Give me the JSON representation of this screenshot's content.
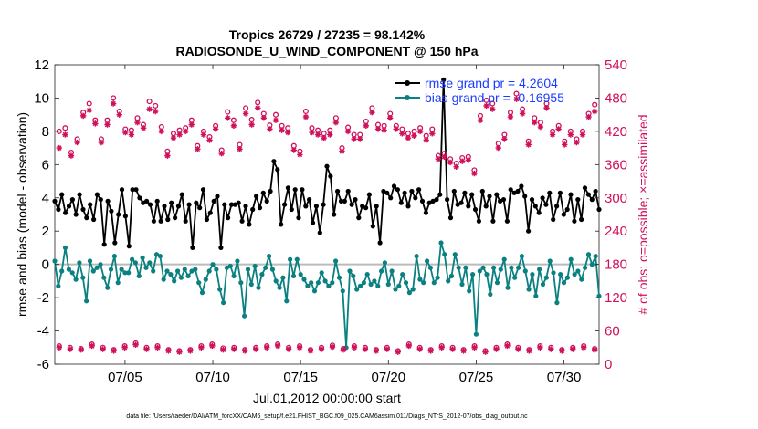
{
  "chart_data": {
    "type": "line",
    "title": "Tropics 26729 / 27235 = 98.142%",
    "subtitle": "RADIOSONDE_U_WIND_COMPONENT @ 150 hPa",
    "xlabel": "Jul.01,2012 00:00:00 start",
    "ylabel": "rmse and bias (model - observation)",
    "ylabel_right": "# of obs: o=possible; ×=assimilated",
    "ylim": [
      -6,
      12
    ],
    "ylim_right": [
      0,
      540
    ],
    "xlim": [
      1,
      32
    ],
    "x_ticks": [
      5,
      10,
      15,
      20,
      25,
      30
    ],
    "x_tick_labels": [
      "07/05",
      "07/10",
      "07/15",
      "07/20",
      "07/25",
      "07/30"
    ],
    "y_ticks": [
      -6,
      -4,
      -2,
      0,
      2,
      4,
      6,
      8,
      10,
      12
    ],
    "y_ticks_right": [
      0,
      60,
      120,
      180,
      240,
      300,
      360,
      420,
      480,
      540
    ],
    "footer": "data file: /Users/raeder/DAI/ATM_forcXX/CAM6_setup/f.e21.FHIST_BGC.f09_025.CAM6assim.011/Diags_NTrS_2012-07/obs_diag_output.nc",
    "legend_position": "top-right",
    "colors": {
      "rmse": "#000000",
      "bias": "#0a8080",
      "counts": "#d0105a",
      "zero_line": "#bbbbbb",
      "legend_text": "#1a3cff"
    },
    "series": [
      {
        "name": "rmse",
        "legend": "rmse grand pr = 4.2604",
        "values": [
          3.8,
          3.3,
          4.2,
          3.1,
          3.5,
          3.9,
          3.0,
          4.2,
          3.3,
          2.8,
          3.6,
          2.7,
          4.2,
          3.9,
          1.2,
          3.8,
          3.2,
          1.3,
          3.0,
          4.5,
          2.9,
          1.1,
          4.5,
          4.5,
          4.0,
          3.7,
          3.8,
          3.6,
          2.6,
          3.8,
          2.6,
          3.5,
          2.7,
          3.7,
          2.8,
          3.5,
          4.2,
          2.6,
          3.6,
          1.0,
          3.7,
          3.4,
          4.5,
          2.7,
          3.1,
          3.8,
          4.1,
          1.0,
          3.6,
          2.8,
          3.6,
          3.6,
          3.7,
          2.6,
          3.5,
          2.4,
          3.3,
          4.1,
          3.4,
          4.3,
          3.8,
          4.4,
          6.2,
          5.7,
          2.4,
          3.6,
          4.6,
          3.3,
          4.5,
          2.8,
          4.5,
          3.5,
          3.9,
          2.5,
          3.5,
          1.9,
          3.6,
          5.9,
          5.3,
          3.0,
          4.4,
          3.8,
          3.8,
          4.4,
          3.6,
          3.9,
          2.8,
          3.5,
          3.4,
          4.2,
          2.3,
          3.5,
          1.3,
          4.4,
          4.3,
          4.0,
          4.7,
          4.5,
          3.7,
          4.3,
          3.5,
          4.4,
          4.0,
          4.5,
          3.8,
          3.1,
          3.7,
          3.8,
          3.9,
          4.2,
          11.1,
          3.9,
          2.8,
          4.4,
          3.6,
          3.7,
          4.3,
          3.5,
          4.2,
          3.3,
          2.6,
          4.4,
          3.5,
          4.1,
          2.6,
          4.2,
          3.8,
          3.9,
          2.6,
          4.5,
          4.3,
          4.4,
          4.7,
          4.1,
          2.0,
          3.9,
          3.5,
          3.1,
          4.0,
          3.6,
          4.3,
          2.7,
          3.5,
          4.3,
          3.0,
          3.3,
          4.2,
          2.6,
          3.9,
          2.7,
          4.6,
          4.2,
          3.9,
          4.4,
          3.3
        ]
      },
      {
        "name": "bias",
        "legend": "bias grand pr = -0.16955",
        "values": [
          0.2,
          -1.3,
          -0.4,
          1.0,
          -0.3,
          -0.5,
          -0.9,
          0.1,
          -0.8,
          -2.2,
          0.2,
          -0.4,
          -0.2,
          0.0,
          -0.8,
          -1.4,
          -0.3,
          0.5,
          -1.1,
          -0.3,
          -0.5,
          -0.5,
          0.3,
          0.1,
          -0.7,
          0.4,
          -0.2,
          0.1,
          -0.4,
          0.6,
          0.5,
          -0.9,
          -0.4,
          -0.6,
          -1.0,
          -0.4,
          -0.8,
          -0.3,
          -0.7,
          -0.4,
          -0.3,
          -1.1,
          -1.7,
          -0.9,
          -0.4,
          0.0,
          -0.3,
          -1.5,
          -2.3,
          -0.2,
          -0.1,
          -0.7,
          0.2,
          -1.1,
          -3.1,
          -0.3,
          -1.2,
          -0.1,
          -1.4,
          -0.6,
          -0.2,
          0.5,
          -0.3,
          -1.0,
          -1.4,
          -0.8,
          -2.2,
          0.3,
          -0.7,
          0.3,
          -0.6,
          -0.9,
          -1.3,
          -1.1,
          -1.6,
          -1.1,
          -0.5,
          -1.0,
          -1.3,
          -1.1,
          0.2,
          -0.8,
          -1.6,
          -5.0,
          -0.4,
          -0.7,
          -1.5,
          -1.3,
          -1.1,
          -0.6,
          -1.2,
          -1.0,
          -1.3,
          -0.4,
          0.1,
          -1.2,
          -0.4,
          -1.5,
          -1.3,
          -0.6,
          -1.1,
          -1.7,
          -1.5,
          0.5,
          -0.9,
          -1.1,
          0.2,
          -0.2,
          -1.1,
          -0.8,
          1.3,
          0.6,
          -1.0,
          -0.7,
          0.6,
          -0.2,
          -1.2,
          -0.2,
          -1.6,
          -0.6,
          -4.2,
          -0.4,
          -0.2,
          -0.6,
          -1.8,
          -0.2,
          -1.1,
          -0.3,
          0.3,
          -1.4,
          -0.2,
          -0.8,
          -0.2,
          0.5,
          -0.4,
          -1.5,
          -0.6,
          -1.9,
          -0.3,
          -1.2,
          -0.8,
          0.2,
          -0.5,
          -2.3,
          -0.6,
          -1.1,
          -0.8,
          0.3,
          -0.6,
          -0.4,
          -0.9,
          -0.2,
          0.6,
          0.0,
          0.5,
          -1.9
        ]
      },
      {
        "name": "possible",
        "values": [
          420,
          426,
          382,
          406,
          454,
          470,
          440,
          406,
          440,
          480,
          456,
          424,
          422,
          444,
          432,
          474,
          466,
          428,
          384,
          416,
          422,
          426,
          440,
          394,
          420,
          410,
          430,
          386,
          455,
          440,
          396,
          462,
          441,
          472,
          452,
          431,
          450,
          430,
          426,
          394,
          384,
          456,
          426,
          422,
          416,
          422,
          444,
          390,
          427,
          414,
          414,
          438,
          462,
          432,
          430,
          452,
          430,
          424,
          416,
          420,
          426,
          412,
          424,
          376,
          380,
          370,
          362,
          372,
          374,
          350,
          448,
          476,
          470,
          398,
          414,
          454,
          488,
          460,
          402,
          444,
          436,
          470,
          420,
          430,
          402,
          420,
          406,
          420,
          452,
          468
        ]
      },
      {
        "name": "assimilated",
        "values": [
          390,
          414,
          376,
          400,
          448,
          458,
          434,
          400,
          432,
          470,
          450,
          418,
          414,
          436,
          426,
          460,
          456,
          420,
          376,
          408,
          414,
          420,
          432,
          388,
          414,
          404,
          424,
          380,
          444,
          430,
          388,
          452,
          432,
          462,
          444,
          424,
          440,
          422,
          418,
          386,
          378,
          446,
          418,
          414,
          408,
          414,
          436,
          384,
          420,
          406,
          406,
          430,
          454,
          424,
          422,
          444,
          424,
          416,
          408,
          412,
          420,
          404,
          416,
          370,
          374,
          364,
          356,
          366,
          368,
          344,
          440,
          466,
          460,
          390,
          406,
          446,
          478,
          452,
          396,
          436,
          428,
          462,
          414,
          424,
          396,
          414,
          400,
          414,
          446,
          456
        ]
      },
      {
        "name": "possible_low",
        "values": [
          33,
          30,
          28,
          36,
          30,
          26,
          33,
          38,
          30,
          33,
          26,
          24,
          26,
          33,
          36,
          29,
          30,
          26,
          30,
          33,
          36,
          30,
          33,
          26,
          30,
          34,
          28,
          33,
          30,
          26,
          30,
          24,
          36,
          30,
          26,
          33,
          30,
          26,
          33,
          24,
          30,
          36,
          30,
          26,
          33,
          30,
          26,
          30,
          33,
          28
        ]
      },
      {
        "name": "assimilated_low",
        "values": [
          30,
          27,
          26,
          33,
          27,
          24,
          30,
          35,
          27,
          30,
          24,
          22,
          24,
          30,
          33,
          26,
          27,
          24,
          27,
          30,
          33,
          27,
          30,
          24,
          27,
          31,
          26,
          30,
          27,
          24,
          27,
          22,
          33,
          27,
          24,
          30,
          27,
          24,
          30,
          22,
          27,
          33,
          27,
          24,
          30,
          27,
          24,
          27,
          30,
          26
        ]
      }
    ]
  }
}
